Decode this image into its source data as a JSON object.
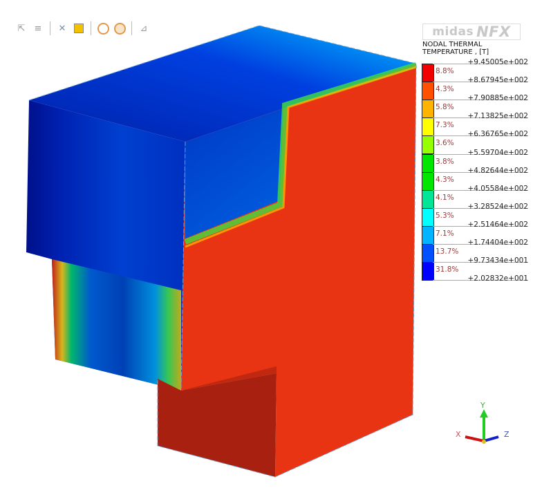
{
  "toolbar": {
    "icons": [
      "select-node-icon",
      "select-line-icon",
      "deselect-icon",
      "select-box-icon",
      "pick-icon",
      "pick-exclude-icon",
      "measure-icon"
    ]
  },
  "logo": {
    "brand": "midas",
    "product": "NFX"
  },
  "legend": {
    "title_line1": "NODAL THERMAL",
    "title_line2": "TEMPERATURE , [T]",
    "values": [
      "+9.45005e+002",
      "+8.67945e+002",
      "+7.90885e+002",
      "+7.13825e+002",
      "+6.36765e+002",
      "+5.59704e+002",
      "+4.82644e+002",
      "+4.05584e+002",
      "+3.28524e+002",
      "+2.51464e+002",
      "+1.74404e+002",
      "+9.73434e+001",
      "+2.02832e+001"
    ],
    "percents": [
      "8.8%",
      "4.3%",
      "5.8%",
      "7.3%",
      "3.6%",
      "3.8%",
      "4.3%",
      "4.1%",
      "5.3%",
      "7.1%",
      "13.7%",
      "31.8%"
    ],
    "colors": [
      "#f00000",
      "#ff5000",
      "#ffb400",
      "#ffff00",
      "#96ff00",
      "#00e600",
      "#00e600",
      "#00e696",
      "#00ffff",
      "#00b4ff",
      "#0050ff",
      "#0000ff"
    ]
  },
  "axes": {
    "x": "X",
    "y": "Y",
    "z": "Z"
  }
}
